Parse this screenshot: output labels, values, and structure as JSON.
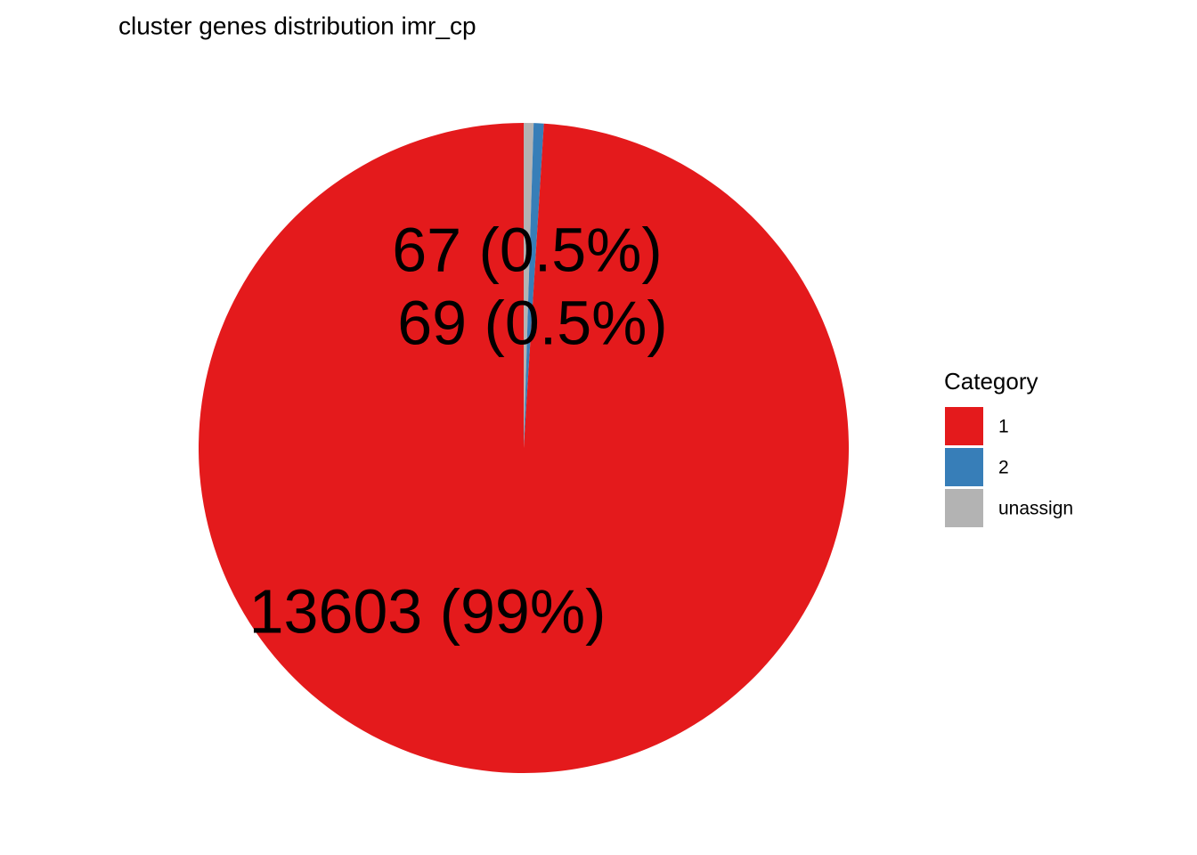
{
  "chart_data": {
    "type": "pie",
    "title": "cluster genes distribution imr_cp",
    "categories": [
      "1",
      "2",
      "unassign"
    ],
    "values": [
      13603,
      69,
      67
    ],
    "value_labels": [
      "13603 (99%)",
      "69 (0.5%)",
      "67 (0.5%)"
    ],
    "colors": [
      "#e41a1c",
      "#377eb8",
      "#b3b3b3"
    ],
    "legend_title": "Category",
    "legend_position": "right"
  }
}
